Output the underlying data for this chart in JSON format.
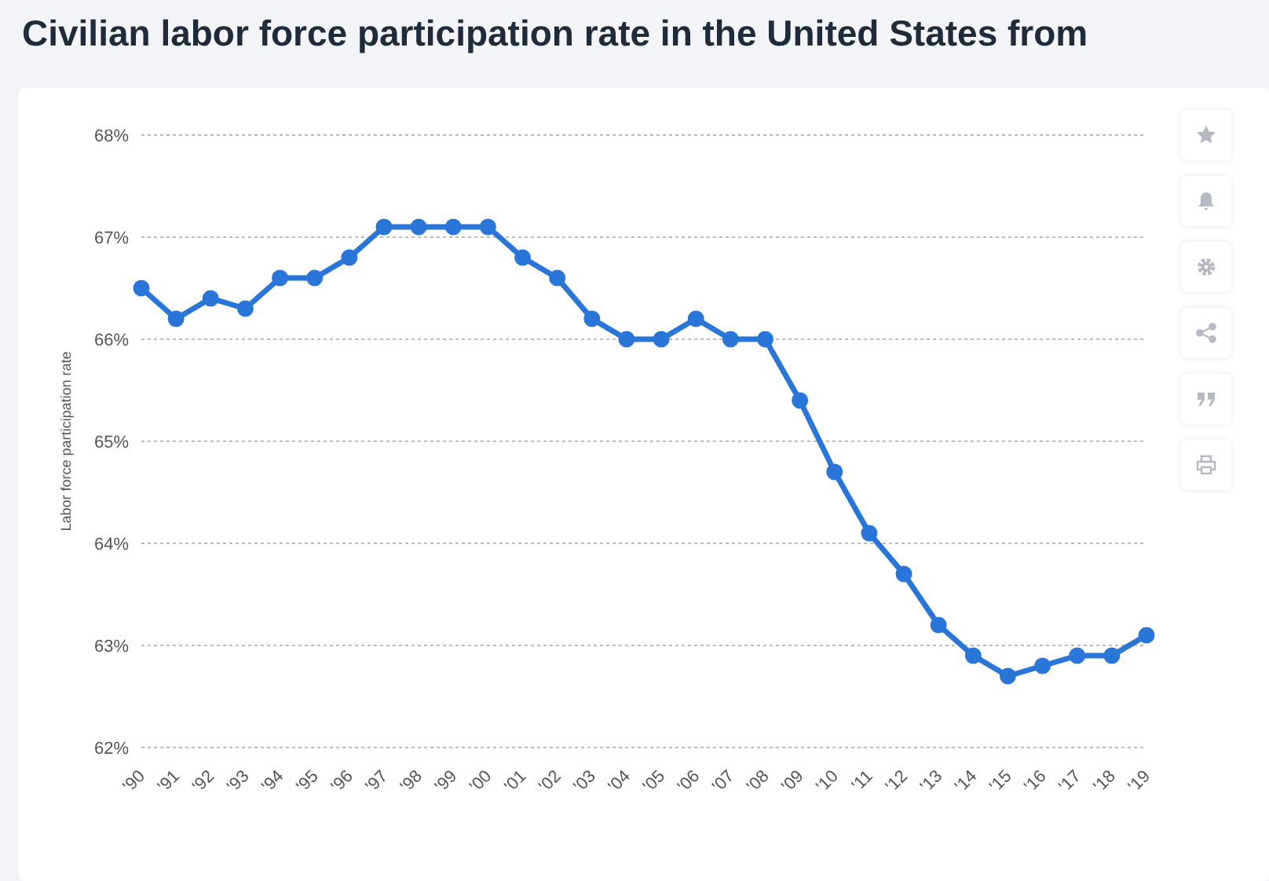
{
  "chart_data": {
    "type": "line",
    "title": "Civilian labor force participation rate in the United States from",
    "ylabel": "Labor force participation rate",
    "categories": [
      "'90",
      "'91",
      "'92",
      "'93",
      "'94",
      "'95",
      "'96",
      "'97",
      "'98",
      "'99",
      "'00",
      "'01",
      "'02",
      "'03",
      "'04",
      "'05",
      "'06",
      "'07",
      "'08",
      "'09",
      "'10",
      "'11",
      "'12",
      "'13",
      "'14",
      "'15",
      "'16",
      "'17",
      "'18",
      "'19"
    ],
    "series": [
      {
        "color": "#2a76d8",
        "values": [
          66.5,
          66.2,
          66.4,
          66.3,
          66.6,
          66.6,
          66.8,
          67.1,
          67.1,
          67.1,
          67.1,
          66.8,
          66.6,
          66.2,
          66.0,
          66.0,
          66.2,
          66.0,
          66.0,
          65.4,
          64.7,
          64.1,
          63.7,
          63.2,
          62.9,
          62.7,
          62.8,
          62.9,
          62.9,
          63.1
        ]
      }
    ],
    "ylim": [
      62,
      68
    ],
    "yticks": [
      {
        "value": 62,
        "label": "62%"
      },
      {
        "value": 63,
        "label": "63%"
      },
      {
        "value": 64,
        "label": "64%"
      },
      {
        "value": 65,
        "label": "65%"
      },
      {
        "value": 66,
        "label": "66%"
      },
      {
        "value": 67,
        "label": "67%"
      },
      {
        "value": 68,
        "label": "68%"
      }
    ],
    "grid": "y",
    "marker": "circle",
    "line_style": "solid",
    "legend": false
  }
}
